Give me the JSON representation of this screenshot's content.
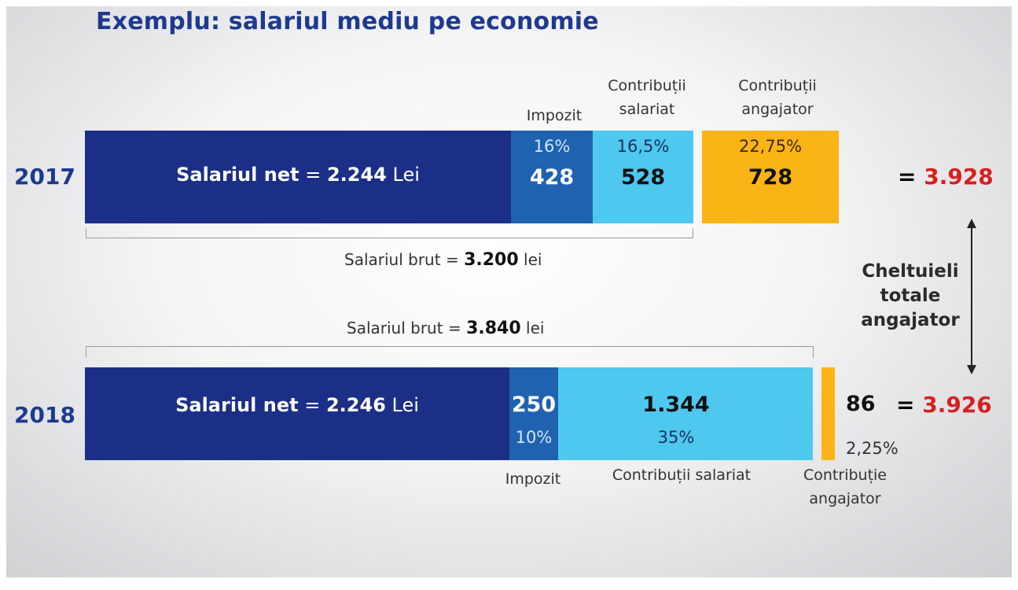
{
  "title": "Exemplu: salariul mediu pe economie",
  "rows": {
    "y2017": {
      "year": "2017",
      "net_label": "Salariul net",
      "net_eq": "=",
      "net_value": "2.244",
      "net_unit": "Lei",
      "impozit_pct": "16%",
      "impozit_value": "428",
      "contrib_salariat_pct": "16,5%",
      "contrib_salariat_value": "528",
      "contrib_angajator_pct": "22,75%",
      "contrib_angajator_value": "728",
      "total_eq": "=",
      "total": "3.928",
      "brut_label": "Salariul brut",
      "brut_eq": "=",
      "brut_value": "3.200",
      "brut_unit": "lei"
    },
    "y2018": {
      "year": "2018",
      "net_label": "Salariul net",
      "net_eq": "=",
      "net_value": "2.246",
      "net_unit": "Lei",
      "impozit_value": "250",
      "impozit_pct": "10%",
      "contrib_salariat_value": "1.344",
      "contrib_salariat_pct": "35%",
      "contrib_angajator_value": "86",
      "contrib_angajator_pct": "2,25%",
      "total_eq": "=",
      "total": "3.926",
      "brut_label": "Salariul brut",
      "brut_eq": "=",
      "brut_value": "3.840",
      "brut_unit": "lei"
    }
  },
  "labels_2017": {
    "impozit": "Impozit",
    "contrib_salariat_line1": "Contribuții",
    "contrib_salariat_line2": "salariat",
    "contrib_angajator_line1": "Contribuții",
    "contrib_angajator_line2": "angajator"
  },
  "labels_2018": {
    "impozit": "Impozit",
    "contrib_salariat": "Contribuții salariat",
    "contrib_angajator_line1": "Contribuție",
    "contrib_angajator_line2": "angajator"
  },
  "side_note": {
    "line1": "Cheltuieli",
    "line2": "totale",
    "line3": "angajator"
  },
  "colors": {
    "net": "#1b2f86",
    "impozit": "#1f62b0",
    "contrib_salariat": "#4ec8ef",
    "contrib_angajator": "#fbb416",
    "title": "#1d3a8f",
    "total": "#d62020"
  },
  "chart_data": {
    "type": "bar",
    "orientation": "horizontal",
    "stacked": true,
    "title": "Exemplu: salariul mediu pe economie",
    "categories": [
      "2017",
      "2018"
    ],
    "series": [
      {
        "name": "Salariul net",
        "values": [
          2244,
          2246
        ]
      },
      {
        "name": "Impozit",
        "values": [
          428,
          250
        ]
      },
      {
        "name": "Contribuții salariat",
        "values": [
          528,
          1344
        ]
      },
      {
        "name": "Contribuții angajator",
        "values": [
          728,
          86
        ]
      }
    ],
    "totals": [
      3928,
      3926
    ],
    "gross": [
      3200,
      3840
    ]
  }
}
